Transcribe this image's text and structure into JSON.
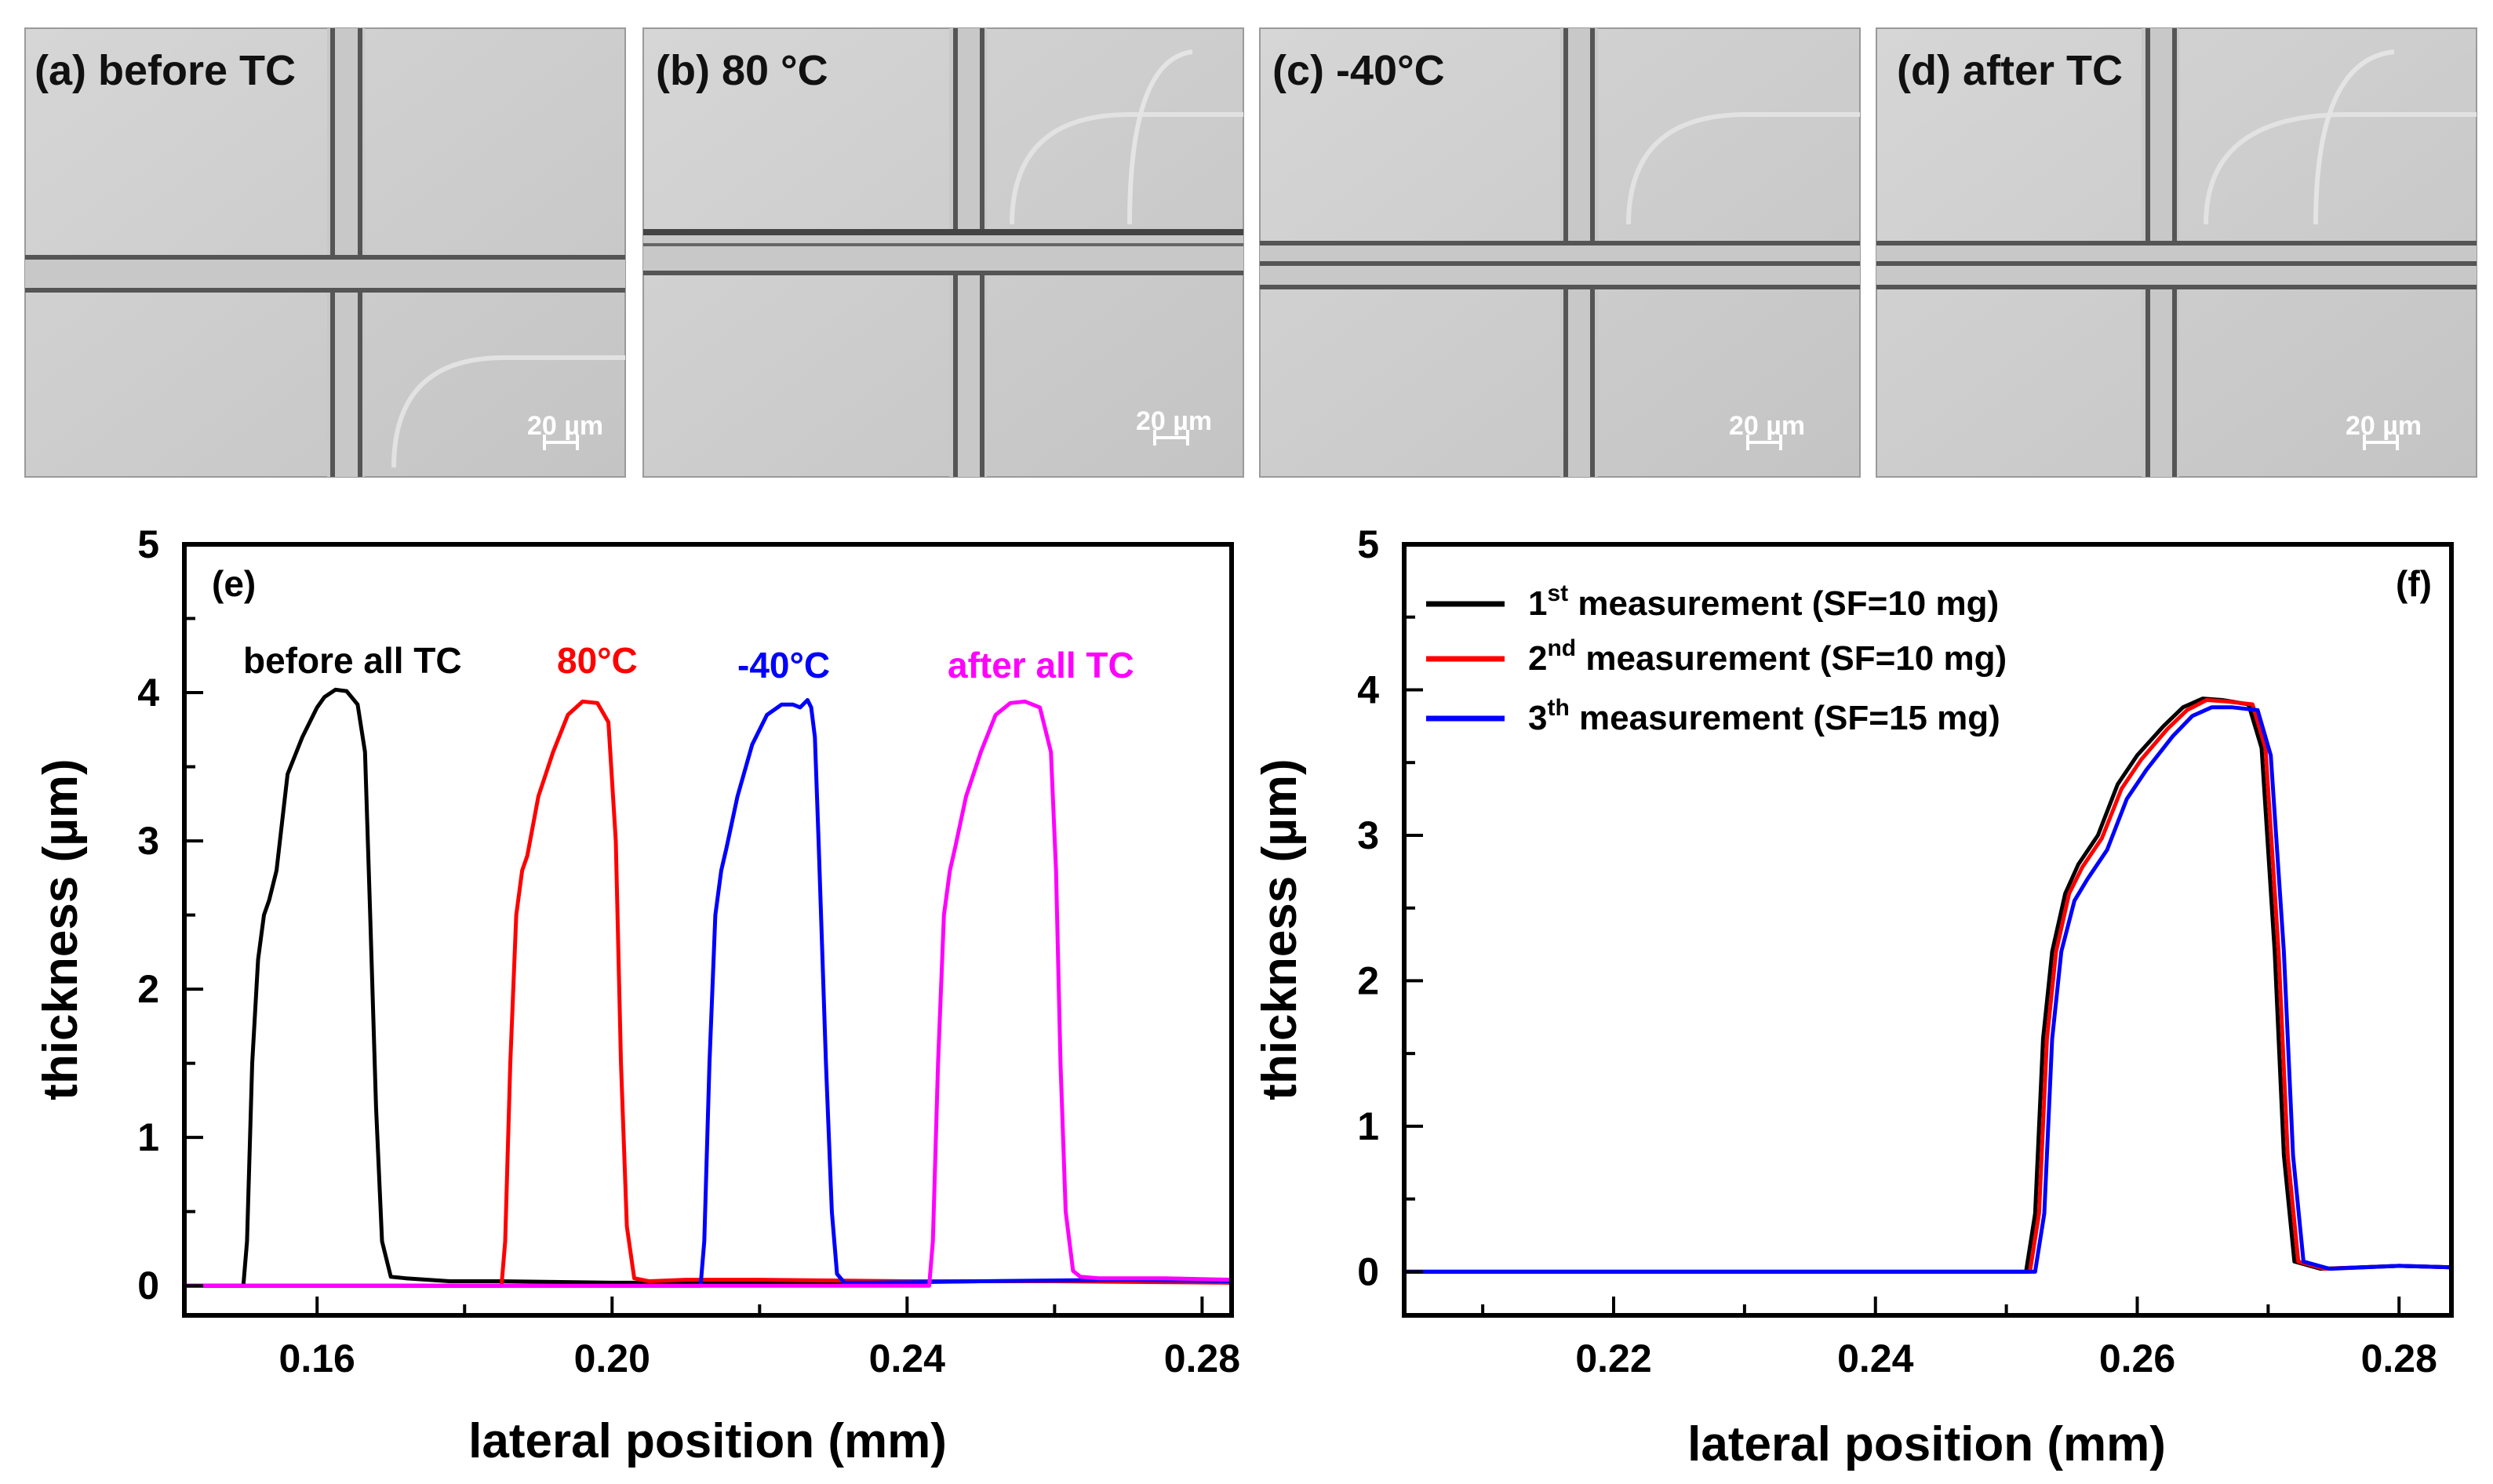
{
  "micrographs": [
    {
      "label": "(a) before TC",
      "scale_bar": "20 µm"
    },
    {
      "label": "(b) 80 °C",
      "scale_bar": "20 µm"
    },
    {
      "label": "(c) -40°C",
      "scale_bar": "20 µm"
    },
    {
      "label": "(d) after TC",
      "scale_bar": "20 µm"
    }
  ],
  "chart_data": [
    {
      "id": "e",
      "type": "line",
      "panel_label": "(e)",
      "xlabel": "lateral position (mm)",
      "ylabel": "thickness (µm)",
      "xlim": [
        0.142,
        0.284
      ],
      "ylim": [
        -0.2,
        5
      ],
      "xticks": [
        0.16,
        0.2,
        0.24,
        0.28
      ],
      "xtick_labels": [
        "0.16",
        "0.20",
        "0.24",
        "0.28"
      ],
      "yticks": [
        0,
        1,
        2,
        3,
        4,
        5
      ],
      "ytick_labels": [
        "0",
        "1",
        "2",
        "3",
        "4",
        "5"
      ],
      "series": [
        {
          "name": "before all TC",
          "color": "#000000",
          "x": [
            0.142,
            0.15,
            0.1505,
            0.1512,
            0.152,
            0.1528,
            0.1535,
            0.1545,
            0.156,
            0.158,
            0.16,
            0.161,
            0.1625,
            0.164,
            0.1655,
            0.1665,
            0.1672,
            0.168,
            0.1688,
            0.17,
            0.172,
            0.175,
            0.178,
            0.185,
            0.2,
            0.22,
            0.25,
            0.284
          ],
          "y": [
            0.0,
            0.0,
            0.3,
            1.5,
            2.2,
            2.5,
            2.6,
            2.8,
            3.45,
            3.7,
            3.9,
            3.97,
            4.02,
            4.01,
            3.92,
            3.6,
            2.5,
            1.2,
            0.3,
            0.06,
            0.05,
            0.04,
            0.03,
            0.03,
            0.02,
            0.02,
            0.03,
            0.03
          ]
        },
        {
          "name": "80°C",
          "color": "#ff0000",
          "x": [
            0.142,
            0.185,
            0.1855,
            0.1862,
            0.187,
            0.1878,
            0.1885,
            0.19,
            0.192,
            0.194,
            0.196,
            0.198,
            0.1995,
            0.2005,
            0.2012,
            0.202,
            0.203,
            0.205,
            0.21,
            0.22,
            0.24,
            0.26,
            0.284
          ],
          "y": [
            0.0,
            0.0,
            0.3,
            1.5,
            2.5,
            2.8,
            2.9,
            3.3,
            3.6,
            3.85,
            3.94,
            3.93,
            3.8,
            3.0,
            1.5,
            0.4,
            0.05,
            0.03,
            0.04,
            0.04,
            0.03,
            0.03,
            0.02
          ]
        },
        {
          "name": "-40°C",
          "color": "#0000ff",
          "x": [
            0.142,
            0.212,
            0.2125,
            0.2132,
            0.214,
            0.2148,
            0.2155,
            0.217,
            0.219,
            0.221,
            0.223,
            0.2245,
            0.2255,
            0.2265,
            0.227,
            0.2275,
            0.228,
            0.229,
            0.2298,
            0.2305,
            0.2315,
            0.235,
            0.25,
            0.27,
            0.284
          ],
          "y": [
            0.0,
            0.0,
            0.3,
            1.5,
            2.5,
            2.8,
            2.95,
            3.3,
            3.65,
            3.85,
            3.92,
            3.92,
            3.9,
            3.95,
            3.9,
            3.7,
            3.0,
            1.5,
            0.5,
            0.08,
            0.02,
            0.02,
            0.03,
            0.04,
            0.03
          ]
        },
        {
          "name": "after all TC",
          "color": "#ff00ff",
          "x": [
            0.142,
            0.243,
            0.2435,
            0.2442,
            0.245,
            0.2458,
            0.2465,
            0.248,
            0.25,
            0.252,
            0.254,
            0.256,
            0.258,
            0.2595,
            0.2602,
            0.2608,
            0.2615,
            0.2625,
            0.2635,
            0.266,
            0.275,
            0.284
          ],
          "y": [
            0.0,
            0.0,
            0.3,
            1.5,
            2.5,
            2.8,
            2.95,
            3.3,
            3.6,
            3.85,
            3.93,
            3.94,
            3.9,
            3.6,
            2.8,
            1.5,
            0.5,
            0.1,
            0.06,
            0.05,
            0.05,
            0.04
          ]
        }
      ],
      "annotations": [
        {
          "text": "before all TC",
          "color": "#000000"
        },
        {
          "text": "80°C",
          "color": "#ff0000"
        },
        {
          "text": "-40°C",
          "color": "#0000ff"
        },
        {
          "text": "after all TC",
          "color": "#ff00ff"
        }
      ]
    },
    {
      "id": "f",
      "type": "line",
      "panel_label": "(f)",
      "xlabel": "lateral position (mm)",
      "ylabel": "thickness (µm)",
      "xlim": [
        0.204,
        0.284
      ],
      "ylim": [
        -0.3,
        5
      ],
      "xticks": [
        0.22,
        0.24,
        0.26,
        0.28
      ],
      "xtick_labels": [
        "0.22",
        "0.24",
        "0.26",
        "0.28"
      ],
      "yticks": [
        0,
        1,
        2,
        3,
        4,
        5
      ],
      "ytick_labels": [
        "0",
        "1",
        "2",
        "3",
        "4",
        "5"
      ],
      "legend_position": "top-left",
      "series": [
        {
          "name_pre": "1",
          "name_sup": "st",
          "name_post": " measurement (SF=10 mg)",
          "color": "#000000",
          "x": [
            0.204,
            0.2515,
            0.2522,
            0.2528,
            0.2535,
            0.2545,
            0.2555,
            0.257,
            0.2585,
            0.26,
            0.262,
            0.2635,
            0.265,
            0.2665,
            0.2685,
            0.2695,
            0.2705,
            0.2712,
            0.272,
            0.274,
            0.28,
            0.284
          ],
          "y": [
            0.0,
            0.0,
            0.4,
            1.6,
            2.2,
            2.6,
            2.8,
            3.0,
            3.35,
            3.55,
            3.75,
            3.88,
            3.94,
            3.93,
            3.9,
            3.6,
            2.2,
            0.8,
            0.07,
            0.02,
            0.04,
            0.03
          ]
        },
        {
          "name_pre": "2",
          "name_sup": "nd",
          "name_post": " measurement (SF=10 mg)",
          "color": "#ff0000",
          "x": [
            0.204,
            0.2518,
            0.2525,
            0.2531,
            0.2538,
            0.2548,
            0.2558,
            0.2573,
            0.2588,
            0.2603,
            0.2623,
            0.2638,
            0.2653,
            0.2668,
            0.2688,
            0.2698,
            0.2708,
            0.2715,
            0.2723,
            0.2743,
            0.28,
            0.284
          ],
          "y": [
            0.0,
            0.0,
            0.4,
            1.6,
            2.2,
            2.6,
            2.78,
            2.98,
            3.32,
            3.52,
            3.73,
            3.86,
            3.93,
            3.92,
            3.9,
            3.6,
            2.2,
            0.8,
            0.07,
            0.02,
            0.04,
            0.03
          ]
        },
        {
          "name_pre": "3",
          "name_sup": "th",
          "name_post": " measurement (SF=15 mg)",
          "color": "#0000ff",
          "x": [
            0.204,
            0.2522,
            0.2529,
            0.2535,
            0.2542,
            0.2552,
            0.2562,
            0.2577,
            0.2592,
            0.2607,
            0.2627,
            0.2642,
            0.2657,
            0.2672,
            0.2692,
            0.2702,
            0.2712,
            0.2719,
            0.2727,
            0.2747,
            0.28,
            0.284
          ],
          "y": [
            0.0,
            0.0,
            0.4,
            1.6,
            2.2,
            2.55,
            2.7,
            2.9,
            3.25,
            3.45,
            3.68,
            3.82,
            3.88,
            3.88,
            3.86,
            3.55,
            2.2,
            0.8,
            0.07,
            0.02,
            0.04,
            0.03
          ]
        }
      ]
    }
  ]
}
